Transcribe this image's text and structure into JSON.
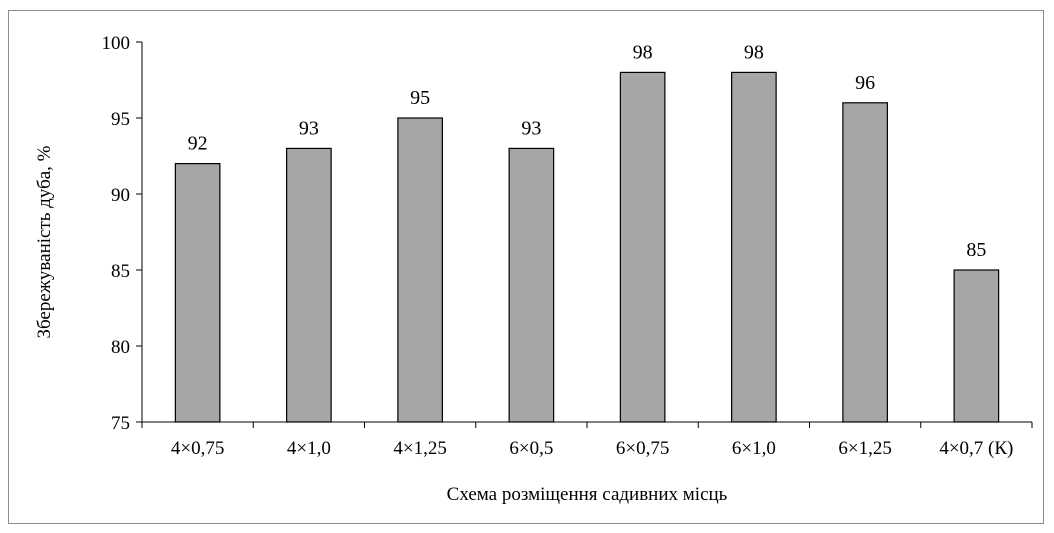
{
  "chart_data": {
    "type": "bar",
    "categories": [
      "4×0,75",
      "4×1,0",
      "4×1,25",
      "6×0,5",
      "6×0,75",
      "6×1,0",
      "6×1,25",
      "4×0,7 (К)"
    ],
    "values": [
      92,
      93,
      95,
      93,
      98,
      98,
      96,
      85
    ],
    "data_labels": [
      "92",
      "93",
      "95",
      "93",
      "98",
      "98",
      "96",
      "85"
    ],
    "xlabel": "Схема розміщення садивних місць",
    "ylabel": "Збережуваність дуба, %",
    "ylim": [
      75,
      100
    ],
    "yticks": [
      75,
      80,
      85,
      90,
      95,
      100
    ],
    "ytick_labels": [
      "75",
      "80",
      "85",
      "90",
      "95",
      "100"
    ],
    "grid": false,
    "legend": "none",
    "bar_color": "#a6a6a6",
    "bar_edge_color": "#000000"
  }
}
